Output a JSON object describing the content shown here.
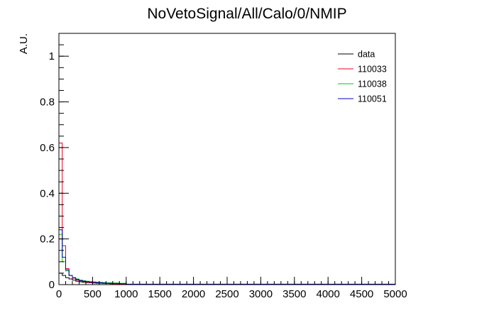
{
  "chart_data": {
    "type": "line",
    "title": "NoVetoSignal/All/Calo/0/NMIP",
    "xlabel": "",
    "ylabel": "A.U.",
    "xlim": [
      0,
      5000
    ],
    "ylim": [
      0,
      1.1
    ],
    "x_ticks": [
      0,
      500,
      1000,
      1500,
      2000,
      2500,
      3000,
      3500,
      4000,
      4500,
      5000
    ],
    "x_tick_labels": [
      "0",
      "500",
      "1000",
      "1500",
      "2000",
      "2500",
      "3000",
      "3500",
      "4000",
      "4500",
      "5000"
    ],
    "y_ticks": [
      0,
      0.2,
      0.4,
      0.6,
      0.8,
      1
    ],
    "y_tick_labels": [
      "0",
      "0.2",
      "0.4",
      "0.6",
      "0.8",
      "1"
    ],
    "grid": false,
    "legend_position": "top-right",
    "bin_width": 50,
    "series": [
      {
        "name": "data",
        "color": "#000000",
        "values": [
          0.05,
          0.04,
          0.03,
          0.025,
          0.02,
          0.015,
          0.012,
          0.01,
          0.009,
          0.008,
          0.007,
          0.006,
          0.006,
          0.005,
          0.005,
          0.004,
          0.004,
          0.004,
          0.003,
          0.003
        ]
      },
      {
        "name": "110033",
        "color": "#e8001f",
        "values": [
          0.62,
          0.17,
          0.07,
          0.04,
          0.028,
          0.02,
          0.016,
          0.013,
          0.011,
          0.009,
          0.008,
          0.007,
          0.006,
          0.005,
          0.005,
          0.004,
          0.004,
          0.003,
          0.003,
          0.003
        ]
      },
      {
        "name": "110038",
        "color": "#00c800",
        "values": [
          0.22,
          0.1,
          0.06,
          0.04,
          0.03,
          0.025,
          0.02,
          0.017,
          0.015,
          0.013,
          0.012,
          0.011,
          0.01,
          0.009,
          0.008,
          0.008,
          0.007,
          0.007,
          0.006,
          0.006
        ]
      },
      {
        "name": "110051",
        "color": "#0000c8",
        "values": [
          0.24,
          0.12,
          0.065,
          0.04,
          0.03,
          0.022,
          0.018,
          0.015,
          0.013,
          0.011,
          0.01,
          0.009,
          0.008,
          0.007,
          0.006,
          0.006,
          0.005,
          0.005,
          0.004,
          0.004
        ]
      }
    ]
  }
}
